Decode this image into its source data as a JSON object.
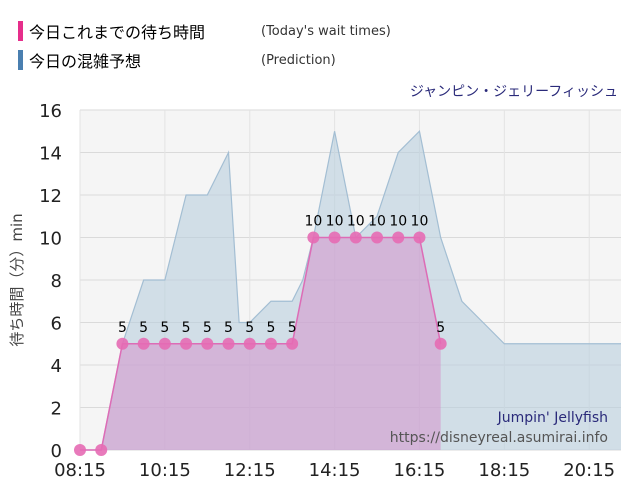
{
  "legend": [
    {
      "label": "今日これまでの待ち時間",
      "english": "(Today's wait times)",
      "color": "#e62e8b"
    },
    {
      "label": "今日の混雑予想",
      "english": "(Prediction)",
      "color": "#4a7fb0"
    }
  ],
  "chart_data": {
    "type": "area",
    "title": "ジャンピン・ジェリーフィッシュ",
    "ylabel": "待ち時間（分）min",
    "xlabel": "",
    "ylim": [
      0,
      16
    ],
    "yticks": [
      0,
      2,
      4,
      6,
      8,
      10,
      12,
      14,
      16
    ],
    "xlim": [
      "08:15",
      "21:00"
    ],
    "xticks": [
      "08:15",
      "10:15",
      "12:15",
      "14:15",
      "16:15",
      "18:15",
      "20:15"
    ],
    "grid": true,
    "watermark": {
      "line1": "Jumpin' Jellyfish",
      "line2": "https://disneyreal.asumirai.info"
    },
    "series": [
      {
        "style": "prediction",
        "color": "#b9cede",
        "points": [
          [
            "08:15",
            0
          ],
          [
            "08:45",
            0
          ],
          [
            "09:15",
            5
          ],
          [
            "09:45",
            8
          ],
          [
            "10:15",
            8
          ],
          [
            "10:45",
            12
          ],
          [
            "11:15",
            12
          ],
          [
            "11:45",
            14
          ],
          [
            "12:00",
            6
          ],
          [
            "12:15",
            6
          ],
          [
            "12:45",
            7
          ],
          [
            "13:15",
            7
          ],
          [
            "13:30",
            8
          ],
          [
            "13:45",
            10
          ],
          [
            "14:15",
            15
          ],
          [
            "14:45",
            10
          ],
          [
            "15:15",
            11
          ],
          [
            "15:45",
            14
          ],
          [
            "16:15",
            15
          ],
          [
            "16:45",
            10
          ],
          [
            "17:15",
            7
          ],
          [
            "17:45",
            6
          ],
          [
            "18:15",
            5
          ],
          [
            "21:00",
            5
          ]
        ]
      },
      {
        "style": "actual",
        "color": "#e66bb4",
        "points": [
          [
            "08:15",
            0
          ],
          [
            "08:45",
            0
          ],
          [
            "09:15",
            5
          ],
          [
            "09:45",
            5
          ],
          [
            "10:15",
            5
          ],
          [
            "10:45",
            5
          ],
          [
            "11:15",
            5
          ],
          [
            "11:45",
            5
          ],
          [
            "12:15",
            5
          ],
          [
            "12:45",
            5
          ],
          [
            "13:15",
            5
          ],
          [
            "13:45",
            10
          ],
          [
            "14:15",
            10
          ],
          [
            "14:45",
            10
          ],
          [
            "15:15",
            10
          ],
          [
            "15:45",
            10
          ],
          [
            "16:15",
            10
          ],
          [
            "16:45",
            5
          ]
        ]
      }
    ]
  }
}
